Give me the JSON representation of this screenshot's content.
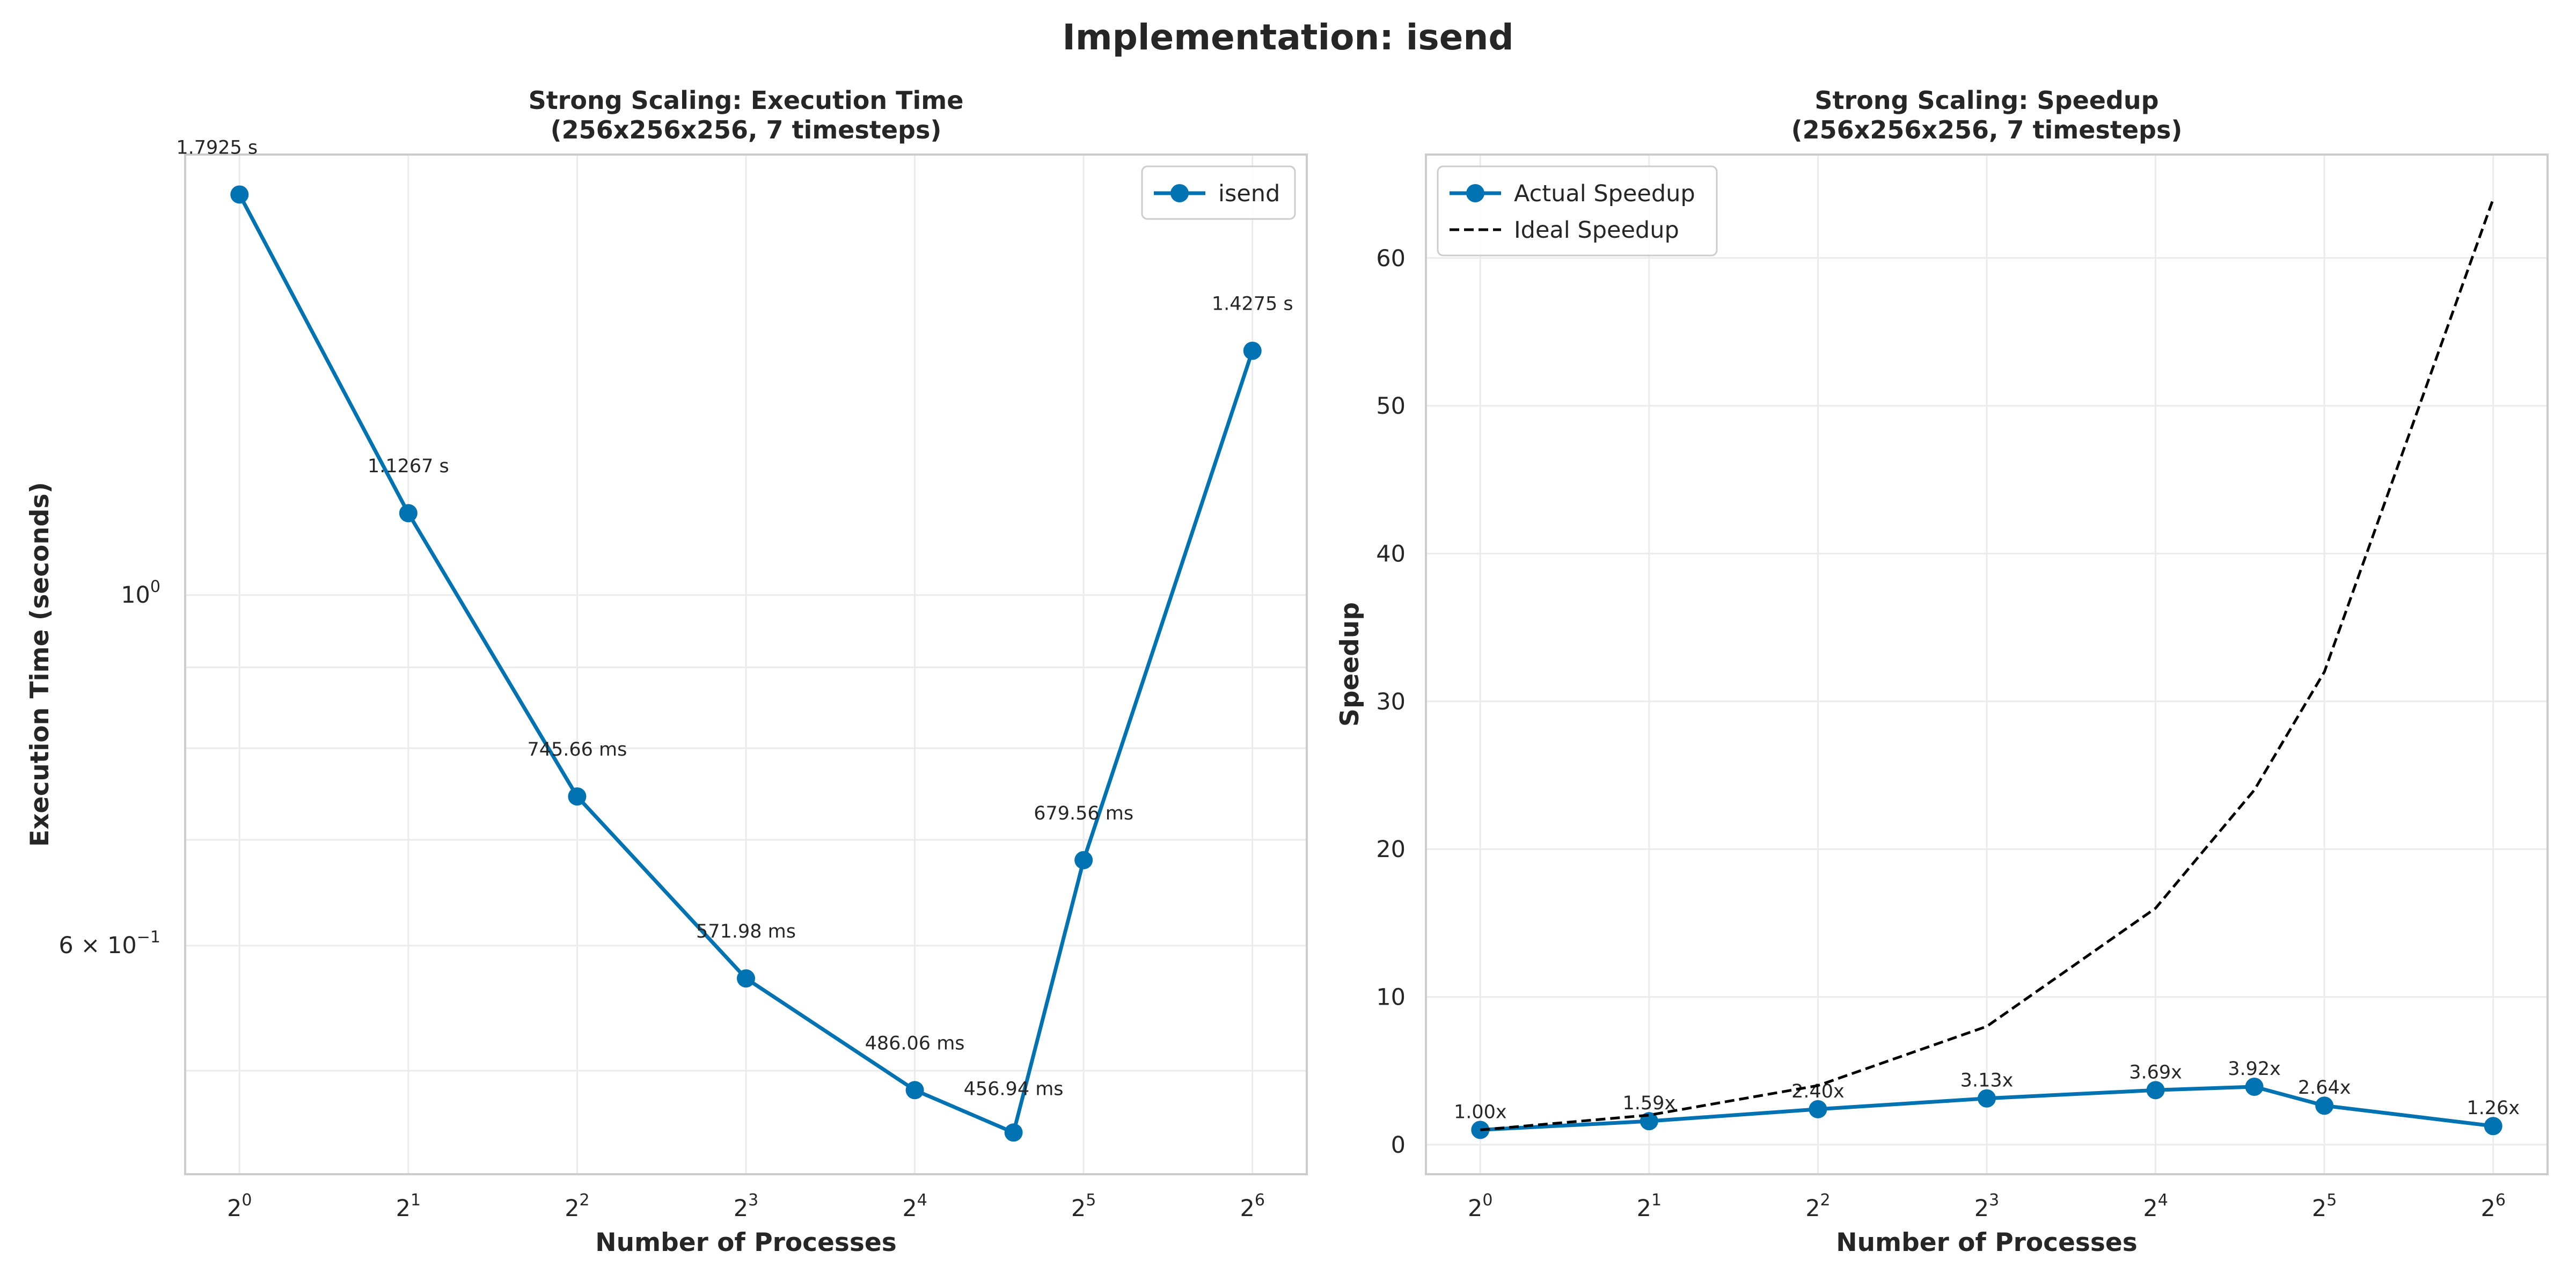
{
  "figure": {
    "title": "Implementation: isend"
  },
  "chart_data": [
    {
      "type": "line",
      "title": "Strong Scaling: Execution Time\n(256x256x256, 7 timesteps)",
      "xlabel": "Number of Processes",
      "ylabel": "Execution Time (seconds)",
      "x_scale": "log2",
      "y_scale": "log",
      "x_ticks": [
        1,
        2,
        4,
        8,
        16,
        32,
        64
      ],
      "x_tick_labels": [
        {
          "base": "2",
          "exp": "0"
        },
        {
          "base": "2",
          "exp": "1"
        },
        {
          "base": "2",
          "exp": "2"
        },
        {
          "base": "2",
          "exp": "3"
        },
        {
          "base": "2",
          "exp": "4"
        },
        {
          "base": "2",
          "exp": "5"
        },
        {
          "base": "2",
          "exp": "6"
        }
      ],
      "y_major_ticks": [
        {
          "value": 0.6,
          "mant": "6 × 10",
          "exp": "−1"
        },
        {
          "value": 1.0,
          "mant": "10",
          "exp": "0"
        }
      ],
      "xlim": [
        0.8,
        80
      ],
      "ylim": [
        0.43,
        1.9
      ],
      "grid": true,
      "legend": {
        "position": "upper right",
        "entries": [
          "isend"
        ]
      },
      "series": [
        {
          "name": "isend",
          "color": "#0173b2",
          "marker": "circle",
          "x": [
            1,
            2,
            4,
            8,
            16,
            24,
            32,
            64
          ],
          "y": [
            1.7925,
            1.1267,
            0.74566,
            0.57198,
            0.48606,
            0.45694,
            0.67956,
            1.4275
          ],
          "labels": [
            "1.7925 s",
            "1.1267 s",
            "745.66 ms",
            "571.98 ms",
            "486.06 ms",
            "456.94 ms",
            "679.56 ms",
            "1.4275 s"
          ]
        }
      ]
    },
    {
      "type": "line",
      "title": "Strong Scaling: Speedup\n(256x256x256, 7 timesteps)",
      "xlabel": "Number of Processes",
      "ylabel": "Speedup",
      "x_scale": "log2",
      "y_scale": "linear",
      "x_ticks": [
        1,
        2,
        4,
        8,
        16,
        32,
        64
      ],
      "x_tick_labels": [
        {
          "base": "2",
          "exp": "0"
        },
        {
          "base": "2",
          "exp": "1"
        },
        {
          "base": "2",
          "exp": "2"
        },
        {
          "base": "2",
          "exp": "3"
        },
        {
          "base": "2",
          "exp": "4"
        },
        {
          "base": "2",
          "exp": "5"
        },
        {
          "base": "2",
          "exp": "6"
        }
      ],
      "y_ticks": [
        0,
        10,
        20,
        30,
        40,
        50,
        60
      ],
      "xlim": [
        0.8,
        80
      ],
      "ylim": [
        -2,
        67
      ],
      "grid": true,
      "legend": {
        "position": "upper left",
        "entries": [
          "Actual Speedup",
          "Ideal Speedup"
        ]
      },
      "series": [
        {
          "name": "Actual Speedup",
          "color": "#0173b2",
          "marker": "circle",
          "x": [
            1,
            2,
            4,
            8,
            16,
            24,
            32,
            64
          ],
          "y": [
            1.0,
            1.59,
            2.4,
            3.13,
            3.69,
            3.92,
            2.64,
            1.26
          ],
          "labels": [
            "1.00x",
            "1.59x",
            "2.40x",
            "3.13x",
            "3.69x",
            "3.92x",
            "2.64x",
            "1.26x"
          ]
        },
        {
          "name": "Ideal Speedup",
          "color": "#000000",
          "style": "dashed",
          "x": [
            1,
            2,
            4,
            8,
            16,
            24,
            32,
            64
          ],
          "y": [
            1,
            2,
            4,
            8,
            16,
            24,
            32,
            64
          ]
        }
      ]
    }
  ]
}
